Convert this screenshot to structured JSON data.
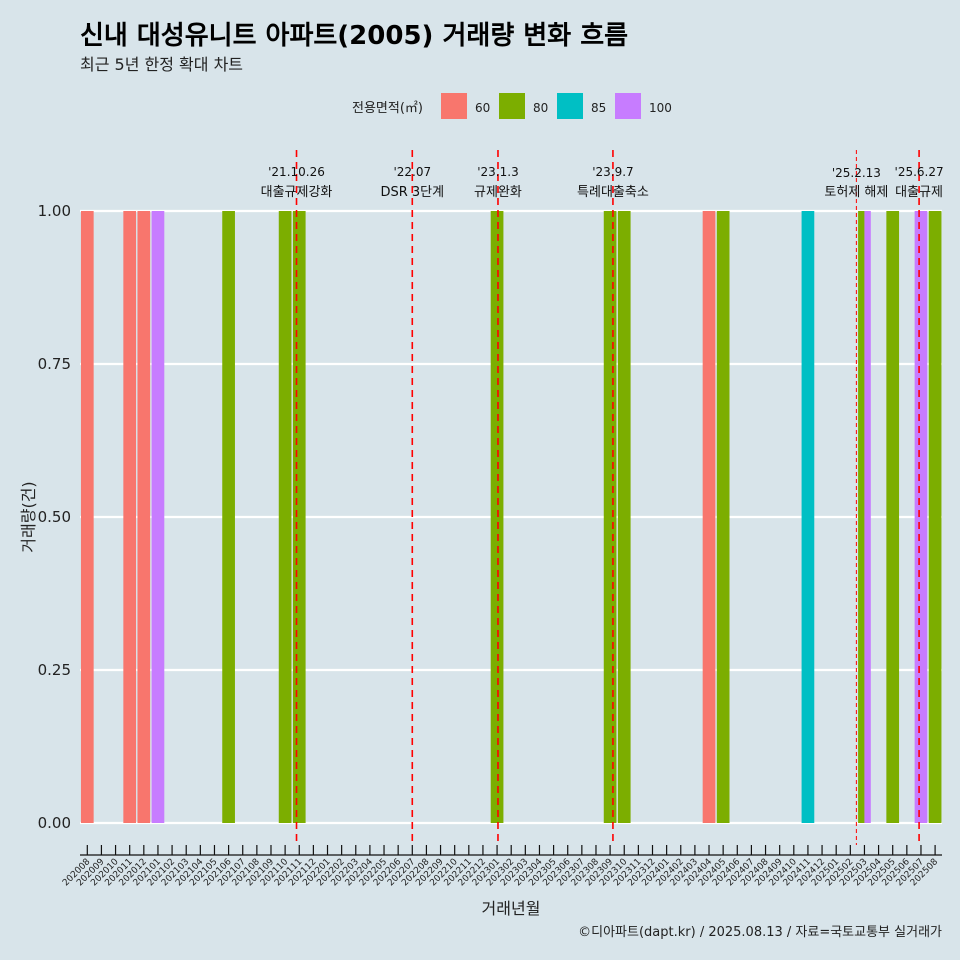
{
  "chart_data": {
    "type": "bar",
    "title": "신내 대성유니트 아파트(2005) 거래량 변화 흐름",
    "subtitle": "최근 5년 한정 확대 차트",
    "xlabel": "거래년월",
    "ylabel": "거래량(건)",
    "ylim": [
      0,
      1
    ],
    "yticks": [
      "0.00",
      "0.25",
      "0.50",
      "0.75",
      "1.00"
    ],
    "legend": {
      "title": "전용면적(㎡)",
      "position": "top",
      "items": [
        {
          "name": "60",
          "color": "#F8766D"
        },
        {
          "name": "80",
          "color": "#7CAE00"
        },
        {
          "name": "85",
          "color": "#00BFC4"
        },
        {
          "name": "100",
          "color": "#C77CFF"
        }
      ]
    },
    "categories": [
      "202008",
      "202009",
      "202010",
      "202011",
      "202012",
      "202101",
      "202102",
      "202103",
      "202104",
      "202105",
      "202106",
      "202107",
      "202108",
      "202109",
      "202110",
      "202111",
      "202112",
      "202201",
      "202202",
      "202203",
      "202204",
      "202205",
      "202206",
      "202207",
      "202208",
      "202209",
      "202210",
      "202211",
      "202212",
      "202301",
      "202302",
      "202303",
      "202304",
      "202305",
      "202306",
      "202307",
      "202308",
      "202309",
      "202310",
      "202311",
      "202312",
      "202401",
      "202402",
      "202403",
      "202404",
      "202405",
      "202406",
      "202407",
      "202408",
      "202409",
      "202410",
      "202411",
      "202412",
      "202501",
      "202502",
      "202503",
      "202504",
      "202505",
      "202506",
      "202507",
      "202508"
    ],
    "bars": [
      {
        "month": "202008",
        "area": "60",
        "value": 1
      },
      {
        "month": "202011",
        "area": "60",
        "value": 1
      },
      {
        "month": "202012",
        "area": "60",
        "value": 1
      },
      {
        "month": "202101",
        "area": "100",
        "value": 1
      },
      {
        "month": "202106",
        "area": "80",
        "value": 1
      },
      {
        "month": "202110",
        "area": "80",
        "value": 1
      },
      {
        "month": "202111",
        "area": "80",
        "value": 1
      },
      {
        "month": "202301",
        "area": "80",
        "value": 1
      },
      {
        "month": "202309",
        "area": "80",
        "value": 1
      },
      {
        "month": "202310",
        "area": "80",
        "value": 1
      },
      {
        "month": "202404",
        "area": "60",
        "value": 1
      },
      {
        "month": "202405",
        "area": "80",
        "value": 1
      },
      {
        "month": "202411",
        "area": "85",
        "value": 1
      },
      {
        "month": "202503",
        "area": "80",
        "value": 1
      },
      {
        "month": "202503",
        "area": "100",
        "value": 1
      },
      {
        "month": "202505",
        "area": "80",
        "value": 1
      },
      {
        "month": "202507",
        "area": "100",
        "value": 1
      },
      {
        "month": "202508",
        "area": "80",
        "value": 1
      }
    ],
    "events": [
      {
        "date": "'21.10.26",
        "label": "대출규제강화",
        "x": "2021-10-26",
        "style": "dashed-long"
      },
      {
        "date": "'22.07",
        "label": "DSR 3단계",
        "x": "2022-07",
        "style": "dashed-long"
      },
      {
        "date": "'23.1.3",
        "label": "규제완화",
        "x": "2023-01-03",
        "style": "dashed-long"
      },
      {
        "date": "'23.9.7",
        "label": "특례대출축소",
        "x": "2023-09-07",
        "style": "dashed-long"
      },
      {
        "date": "'25.2.13",
        "label": "토허제 해제",
        "x": "2025-02-13",
        "style": "dashed-short"
      },
      {
        "date": "'25.6.27",
        "label": "대출규제",
        "x": "2025-06-27",
        "style": "dashed-long"
      }
    ],
    "event_color": "#ff0000",
    "grid": true
  },
  "caption": "©디아파트(dapt.kr) / 2025.08.13 / 자료=국토교통부 실거래가"
}
